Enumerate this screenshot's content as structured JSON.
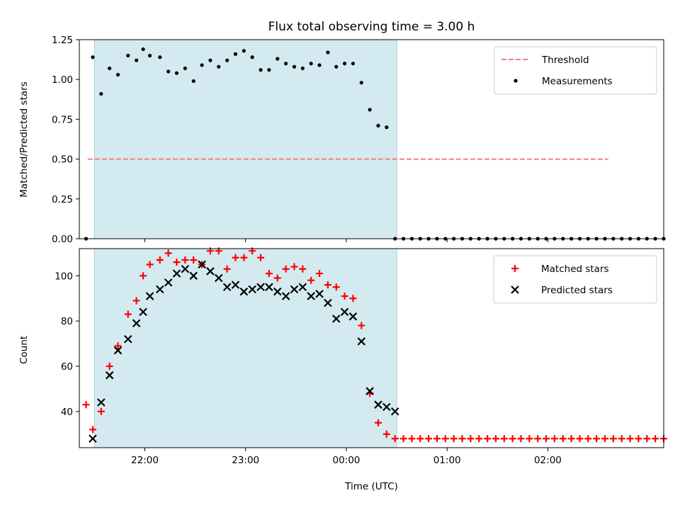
{
  "chart_data": [
    {
      "type": "scatter",
      "title": "Flux total observing time = 3.00 h",
      "ylabel": "Matched/Predicted stars",
      "xlabel": "",
      "xlim": [
        "21:21",
        "03:09"
      ],
      "ylim": [
        0,
        1.25
      ],
      "yticks": [
        0.0,
        0.25,
        0.5,
        0.75,
        1.0,
        1.25
      ],
      "ytick_labels": [
        "0.00",
        "0.25",
        "0.50",
        "0.75",
        "1.00",
        "1.25"
      ],
      "shaded_span": [
        "21:30",
        "00:30"
      ],
      "shade_color": "#d3ebf0",
      "legend_position": "upper right",
      "legend": [
        "Threshold",
        "Measurements"
      ],
      "threshold": {
        "name": "Threshold",
        "x": [
          "21:26",
          "02:36"
        ],
        "y": 0.5,
        "color": "#f08080",
        "style": "dashed"
      },
      "series": [
        {
          "name": "Measurements",
          "color": "#000000",
          "marker": "dot",
          "x": [
            "21:25",
            "21:29",
            "21:34",
            "21:39",
            "21:44",
            "21:50",
            "21:55",
            "21:59",
            "22:03",
            "22:09",
            "22:14",
            "22:19",
            "22:24",
            "22:29",
            "22:34",
            "22:39",
            "22:44",
            "22:49",
            "22:54",
            "22:59",
            "23:04",
            "23:09",
            "23:14",
            "23:19",
            "23:24",
            "23:29",
            "23:34",
            "23:39",
            "23:44",
            "23:49",
            "23:54",
            "23:59",
            "00:04",
            "00:09",
            "00:14",
            "00:19",
            "00:24",
            "00:29",
            "00:34",
            "00:39",
            "00:44",
            "00:49",
            "00:54",
            "00:59",
            "01:04",
            "01:09",
            "01:14",
            "01:19",
            "01:24",
            "01:29",
            "01:34",
            "01:39",
            "01:44",
            "01:49",
            "01:54",
            "01:59",
            "02:04",
            "02:09",
            "02:14",
            "02:19",
            "02:24",
            "02:29",
            "02:34",
            "02:39",
            "02:44",
            "02:49",
            "02:54",
            "02:59",
            "03:04",
            "03:09"
          ],
          "values": [
            0.0,
            1.14,
            0.91,
            1.07,
            1.03,
            1.15,
            1.12,
            1.19,
            1.15,
            1.14,
            1.05,
            1.04,
            1.07,
            0.99,
            1.09,
            1.12,
            1.08,
            1.12,
            1.16,
            1.18,
            1.14,
            1.06,
            1.06,
            1.13,
            1.1,
            1.08,
            1.07,
            1.1,
            1.09,
            1.17,
            1.08,
            1.1,
            1.1,
            0.98,
            0.81,
            0.71,
            0.7,
            0.0,
            0.0,
            0.0,
            0.0,
            0.0,
            0.0,
            0.0,
            0.0,
            0.0,
            0.0,
            0.0,
            0.0,
            0.0,
            0.0,
            0.0,
            0.0,
            0.0,
            0.0,
            0.0,
            0.0,
            0.0,
            0.0,
            0.0,
            0.0,
            0.0,
            0.0,
            0.0,
            0.0,
            0.0,
            0.0,
            0.0,
            0.0,
            0.0
          ]
        }
      ]
    },
    {
      "type": "scatter",
      "title": "",
      "ylabel": "Count",
      "xlabel": "Time (UTC)",
      "xlim": [
        "21:21",
        "03:09"
      ],
      "ylim": [
        24,
        112
      ],
      "yticks": [
        40,
        60,
        80,
        100
      ],
      "ytick_labels": [
        "40",
        "60",
        "80",
        "100"
      ],
      "xticks": [
        "22:00",
        "23:00",
        "00:00",
        "01:00",
        "02:00"
      ],
      "xtick_labels": [
        "22:00",
        "23:00",
        "00:00",
        "01:00",
        "02:00"
      ],
      "shaded_span": [
        "21:30",
        "00:30"
      ],
      "shade_color": "#d3ebf0",
      "legend_position": "upper right",
      "legend": [
        "Matched stars",
        "Predicted stars"
      ],
      "series": [
        {
          "name": "Matched stars",
          "color": "#ff0000",
          "marker": "plus",
          "x": [
            "21:25",
            "21:29",
            "21:34",
            "21:39",
            "21:44",
            "21:50",
            "21:55",
            "21:59",
            "22:03",
            "22:09",
            "22:14",
            "22:19",
            "22:24",
            "22:29",
            "22:34",
            "22:39",
            "22:44",
            "22:49",
            "22:54",
            "22:59",
            "23:04",
            "23:09",
            "23:14",
            "23:19",
            "23:24",
            "23:29",
            "23:34",
            "23:39",
            "23:44",
            "23:49",
            "23:54",
            "23:59",
            "00:04",
            "00:09",
            "00:14",
            "00:19",
            "00:24",
            "00:29",
            "00:34",
            "00:39",
            "00:44",
            "00:49",
            "00:54",
            "00:59",
            "01:04",
            "01:09",
            "01:14",
            "01:19",
            "01:24",
            "01:29",
            "01:34",
            "01:39",
            "01:44",
            "01:49",
            "01:54",
            "01:59",
            "02:04",
            "02:09",
            "02:14",
            "02:19",
            "02:24",
            "02:29",
            "02:34",
            "02:39",
            "02:44",
            "02:49",
            "02:54",
            "02:59",
            "03:04",
            "03:09"
          ],
          "values": [
            43,
            32,
            40,
            60,
            69,
            83,
            89,
            100,
            105,
            107,
            110,
            106,
            107,
            107,
            105,
            111,
            111,
            103,
            108,
            108,
            111,
            108,
            101,
            99,
            103,
            104,
            103,
            98,
            101,
            96,
            95,
            91,
            90,
            78,
            48,
            35,
            30,
            28,
            28,
            28,
            28,
            28,
            28,
            28,
            28,
            28,
            28,
            28,
            28,
            28,
            28,
            28,
            28,
            28,
            28,
            28,
            28,
            28,
            28,
            28,
            28,
            28,
            28,
            28,
            28,
            28,
            28,
            28,
            28,
            28
          ]
        },
        {
          "name": "Predicted stars",
          "color": "#000000",
          "marker": "x",
          "x": [
            "21:29",
            "21:34",
            "21:39",
            "21:44",
            "21:50",
            "21:55",
            "21:59",
            "22:03",
            "22:09",
            "22:14",
            "22:19",
            "22:24",
            "22:29",
            "22:34",
            "22:39",
            "22:44",
            "22:49",
            "22:54",
            "22:59",
            "23:04",
            "23:09",
            "23:14",
            "23:19",
            "23:24",
            "23:29",
            "23:34",
            "23:39",
            "23:44",
            "23:49",
            "23:54",
            "23:59",
            "00:04",
            "00:09",
            "00:14",
            "00:19",
            "00:24",
            "00:29"
          ],
          "values": [
            28,
            44,
            56,
            67,
            72,
            79,
            84,
            91,
            94,
            97,
            101,
            103,
            100,
            105,
            102,
            99,
            95,
            96,
            93,
            94,
            95,
            95,
            93,
            91,
            94,
            95,
            91,
            92,
            88,
            81,
            84,
            82,
            71,
            49,
            43,
            42,
            40
          ]
        }
      ]
    }
  ]
}
